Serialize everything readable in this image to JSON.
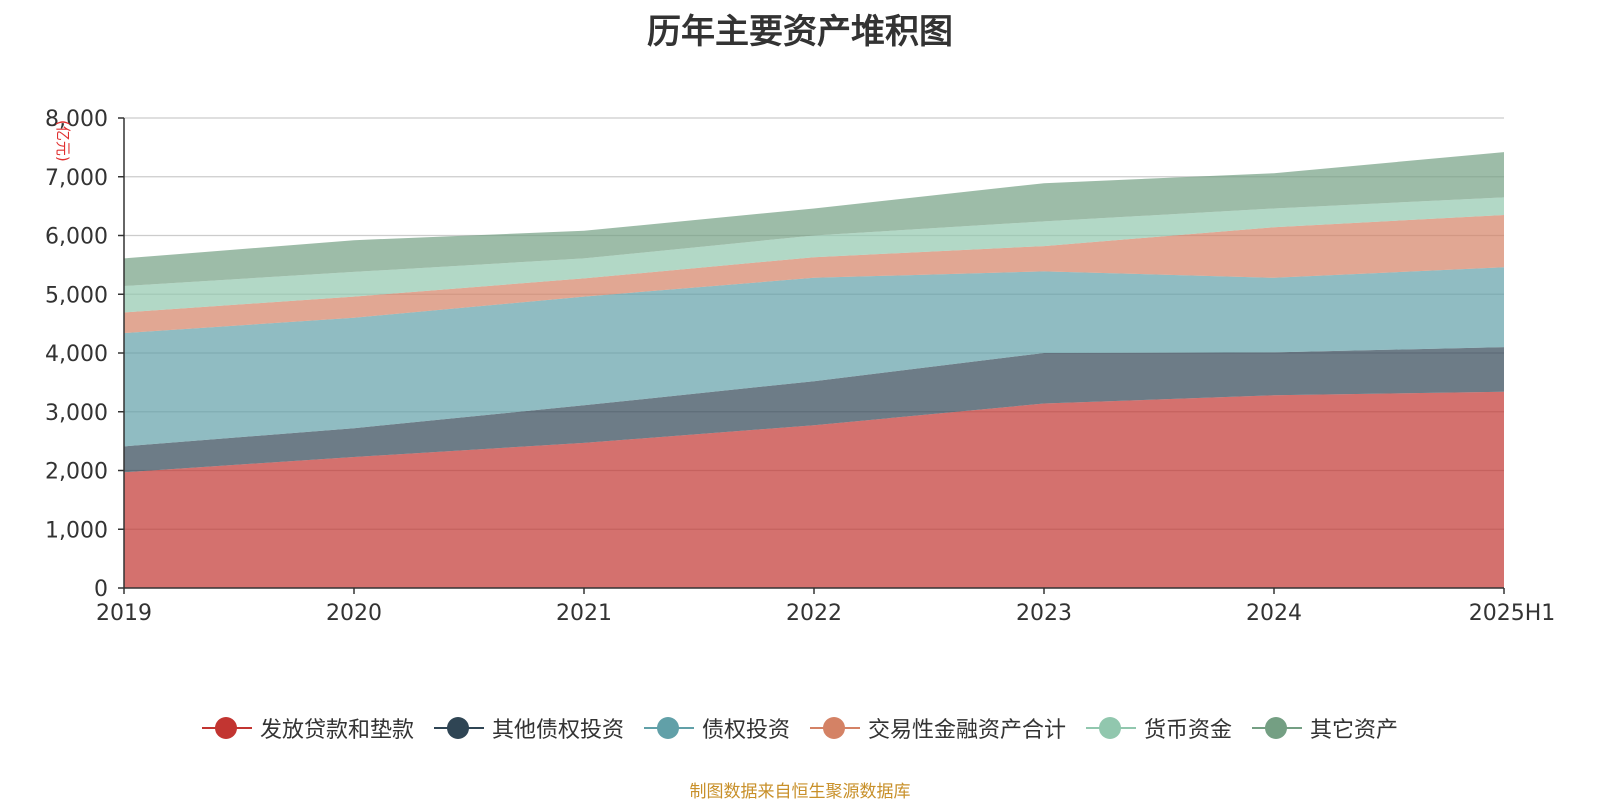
{
  "title": "历年主要资产堆积图",
  "source": "制图数据来自恒生聚源数据库",
  "chart_data": {
    "type": "area",
    "stacked": true,
    "title": "历年主要资产堆积图",
    "ylabel": "亿元",
    "ylim": [
      0,
      8000
    ],
    "yticks": [
      0,
      1000,
      2000,
      3000,
      4000,
      5000,
      6000,
      7000,
      8000
    ],
    "ytick_labels": [
      "0",
      "1,000",
      "2,000",
      "3,000",
      "4,000",
      "5,000",
      "6,000",
      "7,000",
      "8,000"
    ],
    "categories": [
      "2019",
      "2020",
      "2021",
      "2022",
      "2023",
      "2024",
      "2025H1"
    ],
    "grid": true,
    "legend_position": "bottom",
    "series": [
      {
        "name": "发放贷款和垫款",
        "color": "#c23531",
        "values": [
          1970,
          2230,
          2470,
          2770,
          3140,
          3280,
          3340
        ]
      },
      {
        "name": "其他债权投资",
        "color": "#2f4554",
        "values": [
          440,
          490,
          640,
          750,
          860,
          730,
          760
        ]
      },
      {
        "name": "债权投资",
        "color": "#61a0a8",
        "values": [
          1930,
          1880,
          1850,
          1760,
          1390,
          1270,
          1360
        ]
      },
      {
        "name": "交易性金融资产合计",
        "color": "#d48265",
        "values": [
          350,
          360,
          310,
          350,
          430,
          860,
          890
        ]
      },
      {
        "name": "货币资金",
        "color": "#91c7ae",
        "values": [
          450,
          420,
          340,
          370,
          420,
          320,
          300
        ]
      },
      {
        "name": "其它资产",
        "color": "#749f83",
        "values": [
          470,
          540,
          470,
          460,
          650,
          600,
          770
        ]
      }
    ]
  }
}
